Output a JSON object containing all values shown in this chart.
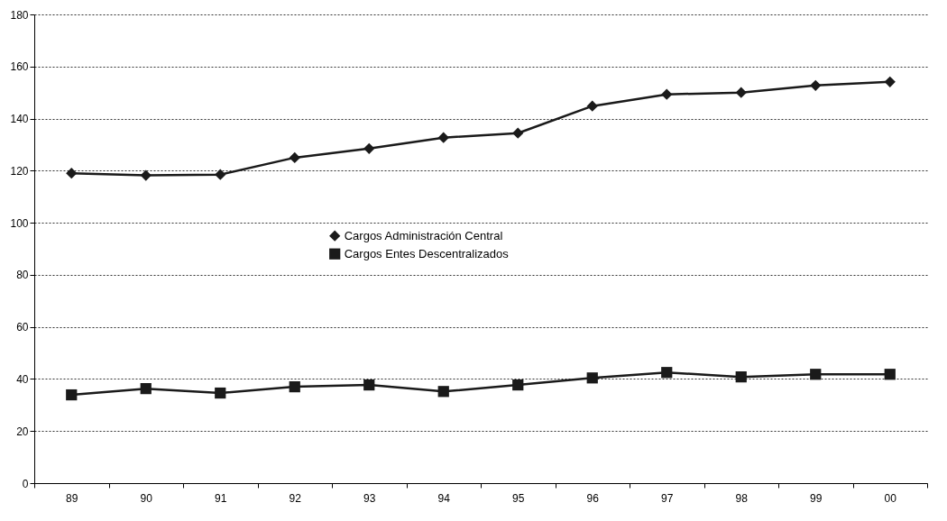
{
  "chart_data": {
    "type": "line",
    "categories": [
      "89",
      "90",
      "91",
      "92",
      "93",
      "94",
      "95",
      "96",
      "97",
      "98",
      "99",
      "00"
    ],
    "series": [
      {
        "name": "Cargos Administración Central",
        "color": "#1a1a1a",
        "marker": "diamond",
        "values": [
          119,
          118.2,
          118.5,
          125,
          128.5,
          132.7,
          134.4,
          144.8,
          149.3,
          150,
          152.7,
          154.1
        ]
      },
      {
        "name": "Cargos Entes Descentralizados",
        "color": "#1a1a1a",
        "marker": "square",
        "values": [
          33.9,
          36.3,
          34.6,
          37,
          37.7,
          35.2,
          37.7,
          40.4,
          42.5,
          40.8,
          41.8,
          41.8
        ]
      }
    ],
    "ylim": [
      0,
      180
    ],
    "yticks": [
      0,
      20,
      40,
      60,
      80,
      100,
      120,
      140,
      160,
      180
    ],
    "grid": "y",
    "legend": "center",
    "line_style": "solid"
  }
}
